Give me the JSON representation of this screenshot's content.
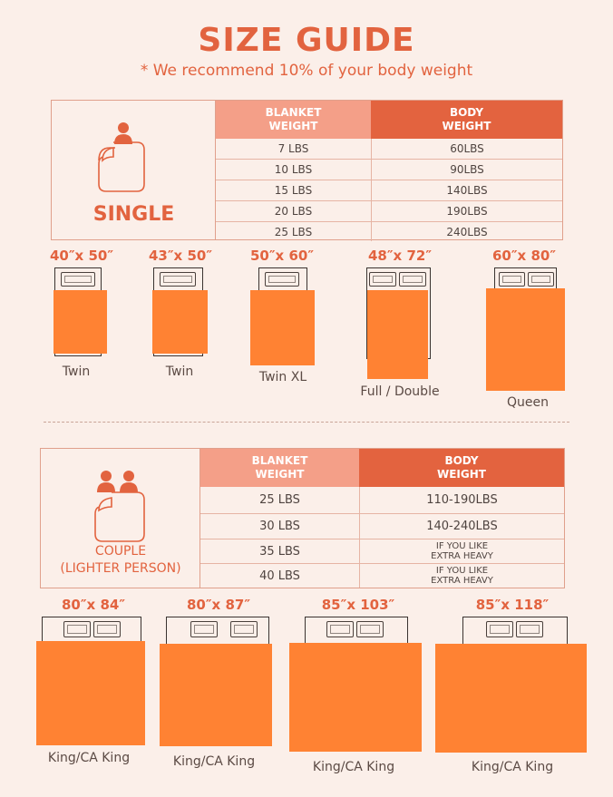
{
  "header": {
    "title": "SIZE GUIDE",
    "subtitle": "* We recommend 10% of your body weight"
  },
  "colors": {
    "accent": "#e2633f",
    "header_light": "#f49f88",
    "header_dark": "#e3633f",
    "blanket": "#ff8233",
    "background": "#fbefe9"
  },
  "single_table": {
    "label": "SINGLE",
    "col_blanket": "BLANKET WEIGHT",
    "col_body": "BODY WEIGHT",
    "rows": [
      {
        "blanket": "7 LBS",
        "body": "60LBS"
      },
      {
        "blanket": "10 LBS",
        "body": "90LBS"
      },
      {
        "blanket": "15 LBS",
        "body": "140LBS"
      },
      {
        "blanket": "20 LBS",
        "body": "190LBS"
      },
      {
        "blanket": "25 LBS",
        "body": "240LBS"
      }
    ]
  },
  "single_beds": [
    {
      "size": "40″x 50″",
      "name": "Twin"
    },
    {
      "size": "43″x 50″",
      "name": "Twin"
    },
    {
      "size": "50″x 60″",
      "name": "Twin XL"
    },
    {
      "size": "48″x 72″",
      "name": "Full / Double"
    },
    {
      "size": "60″x 80″",
      "name": "Queen"
    }
  ],
  "couple_table": {
    "label_line1": "COUPLE",
    "label_line2": "(LIGHTER PERSON)",
    "col_blanket": "BLANKET WEIGHT",
    "col_body": "BODY WEIGHT",
    "rows": [
      {
        "blanket": "25 LBS",
        "body": "110-190LBS"
      },
      {
        "blanket": "30 LBS",
        "body": "140-240LBS"
      },
      {
        "blanket": "35 LBS",
        "body_line1": "IF YOU LIKE",
        "body_line2": "EXTRA HEAVY"
      },
      {
        "blanket": "40 LBS",
        "body_line1": "IF YOU LIKE",
        "body_line2": "EXTRA HEAVY"
      }
    ]
  },
  "couple_beds": [
    {
      "size": "80″x 84″",
      "name": "King/CA King"
    },
    {
      "size": "80″x 87″",
      "name": "King/CA King"
    },
    {
      "size": "85″x 103″",
      "name": "King/CA King"
    },
    {
      "size": "85″x 118″",
      "name": "King/CA King"
    }
  ]
}
